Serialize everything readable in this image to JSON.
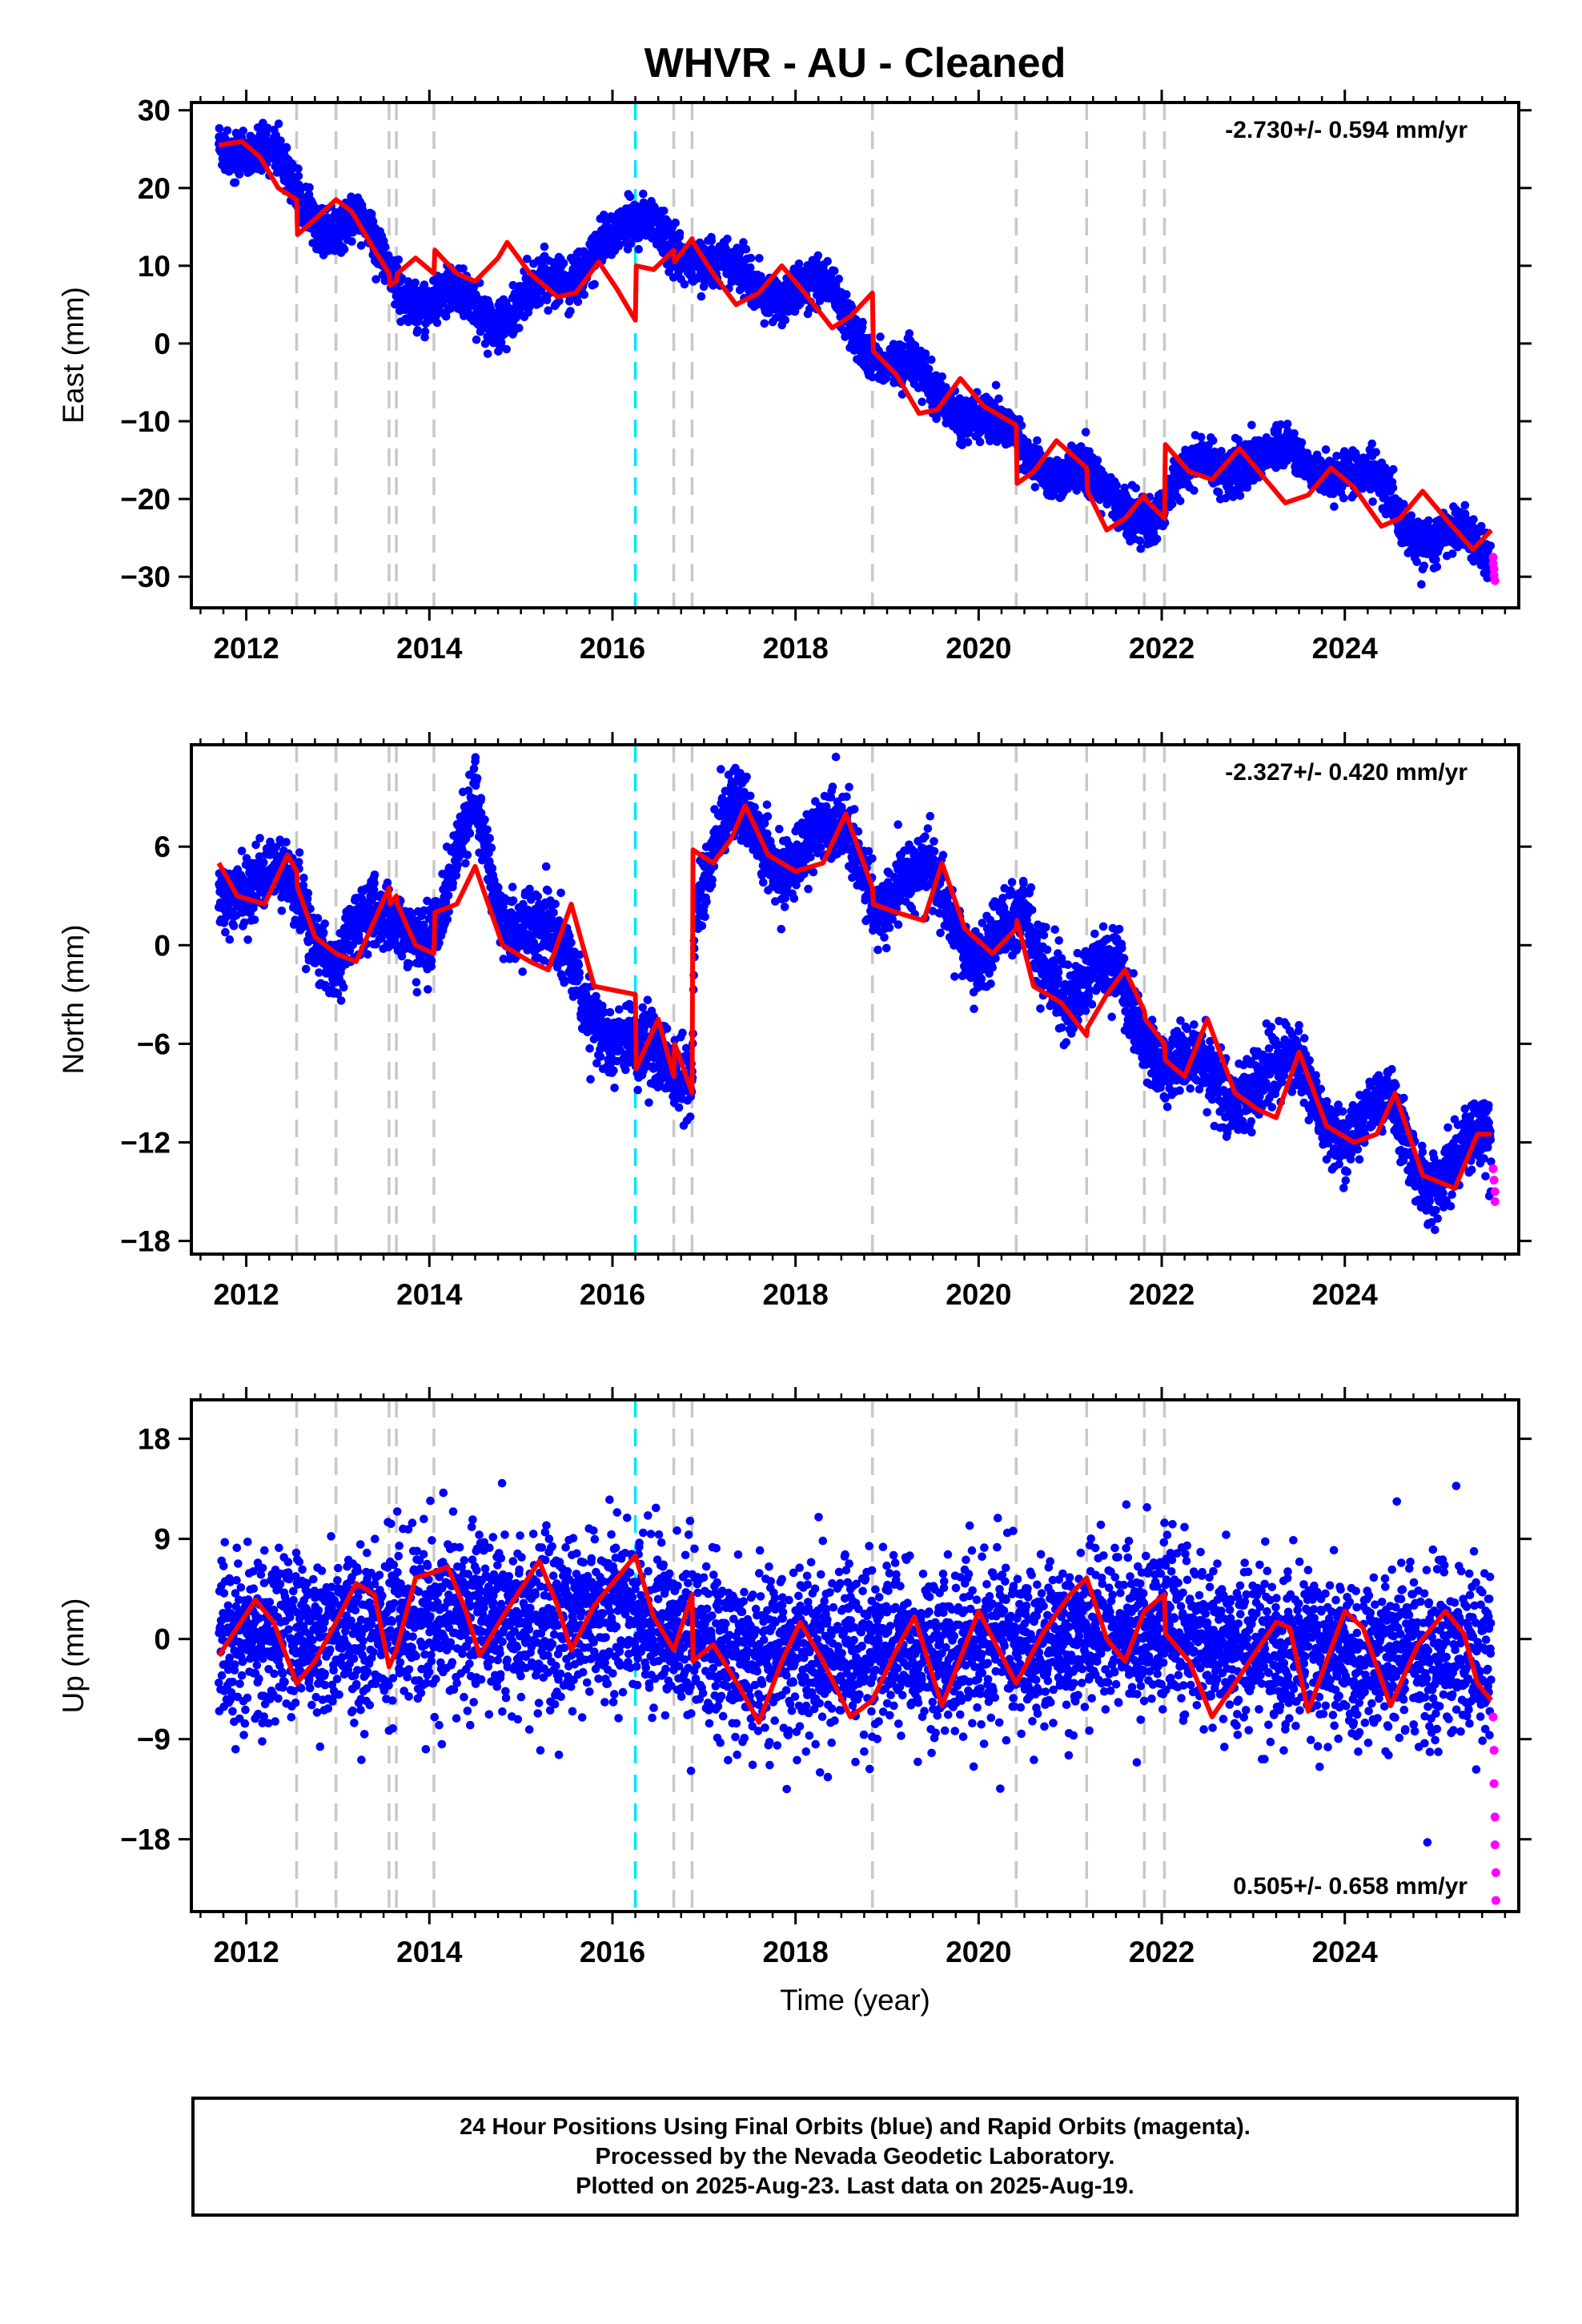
{
  "title": "WHVR  - AU - Cleaned",
  "xlabel": "Time (year)",
  "caption": [
    "24 Hour Positions Using Final Orbits (blue) and Rapid Orbits (magenta).",
    "Processed by the Nevada Geodetic Laboratory.",
    "Plotted on 2025-Aug-23. Last data on 2025-Aug-19."
  ],
  "colors": {
    "final_points": "#0000ff",
    "rapid_points": "#ff00ff",
    "model": "#ff0000",
    "break_lines": "#c8c8c8",
    "highlight_break": "#00e5ff"
  },
  "chart_data": [
    {
      "type": "scatter",
      "ylabel": "East (mm)",
      "xlim": [
        2011.4,
        2025.9
      ],
      "ylim": [
        -34,
        31
      ],
      "yticks": [
        30,
        20,
        10,
        0,
        -10,
        -20,
        -30
      ],
      "xticks": [
        2012,
        2014,
        2016,
        2018,
        2020,
        2022,
        2024
      ],
      "xtick_labels": [
        "2012",
        "2014",
        "2016",
        "2018",
        "2020",
        "2022",
        "2024"
      ],
      "rate_label": "-2.730+/- 0.594 mm/yr",
      "rate_position": "top-right",
      "grid": false,
      "break_lines": [
        2012.55,
        2012.98,
        2013.56,
        2013.64,
        2014.05,
        2016.67,
        2016.87,
        2018.84,
        2020.41,
        2021.18,
        2021.81,
        2022.03
      ],
      "highlight_break": 2016.25,
      "model": [
        [
          2011.7,
          25.5
        ],
        [
          2011.95,
          26.0
        ],
        [
          2012.15,
          24.0
        ],
        [
          2012.35,
          20.0
        ],
        [
          2012.55,
          18.5
        ],
        [
          2012.56,
          14.0
        ],
        [
          2012.75,
          16.0
        ],
        [
          2012.98,
          18.5
        ],
        [
          2013.15,
          17.0
        ],
        [
          2013.35,
          13.0
        ],
        [
          2013.56,
          9.0
        ],
        [
          2013.57,
          7.5
        ],
        [
          2013.64,
          8.0
        ],
        [
          2013.65,
          9.0
        ],
        [
          2013.85,
          11.0
        ],
        [
          2014.05,
          9.0
        ],
        [
          2014.06,
          12.0
        ],
        [
          2014.3,
          9.0
        ],
        [
          2014.5,
          8.0
        ],
        [
          2014.75,
          11.0
        ],
        [
          2014.85,
          13.0
        ],
        [
          2015.1,
          9.0
        ],
        [
          2015.4,
          6.0
        ],
        [
          2015.6,
          6.5
        ],
        [
          2015.85,
          10.5
        ],
        [
          2016.05,
          7.0
        ],
        [
          2016.25,
          3.0
        ],
        [
          2016.26,
          10.0
        ],
        [
          2016.45,
          9.5
        ],
        [
          2016.67,
          12.0
        ],
        [
          2016.68,
          10.5
        ],
        [
          2016.87,
          13.5
        ],
        [
          2016.88,
          13.0
        ],
        [
          2017.1,
          9.0
        ],
        [
          2017.35,
          5.0
        ],
        [
          2017.6,
          6.5
        ],
        [
          2017.85,
          10.0
        ],
        [
          2018.1,
          6.5
        ],
        [
          2018.4,
          2.0
        ],
        [
          2018.6,
          3.5
        ],
        [
          2018.84,
          6.5
        ],
        [
          2018.85,
          -1.0
        ],
        [
          2019.1,
          -4.0
        ],
        [
          2019.35,
          -9.0
        ],
        [
          2019.55,
          -8.5
        ],
        [
          2019.8,
          -4.5
        ],
        [
          2020.05,
          -8.0
        ],
        [
          2020.41,
          -10.5
        ],
        [
          2020.42,
          -18.0
        ],
        [
          2020.6,
          -16.5
        ],
        [
          2020.85,
          -12.5
        ],
        [
          2021.18,
          -16.0
        ],
        [
          2021.19,
          -19.0
        ],
        [
          2021.4,
          -24.0
        ],
        [
          2021.6,
          -22.5
        ],
        [
          2021.81,
          -19.5
        ],
        [
          2021.82,
          -20.0
        ],
        [
          2022.03,
          -22.5
        ],
        [
          2022.04,
          -13.0
        ],
        [
          2022.3,
          -16.5
        ],
        [
          2022.55,
          -17.5
        ],
        [
          2022.85,
          -13.5
        ],
        [
          2023.1,
          -17.0
        ],
        [
          2023.35,
          -20.5
        ],
        [
          2023.6,
          -19.5
        ],
        [
          2023.85,
          -16.0
        ],
        [
          2024.1,
          -18.5
        ],
        [
          2024.4,
          -23.5
        ],
        [
          2024.6,
          -22.5
        ],
        [
          2024.85,
          -19.0
        ],
        [
          2025.1,
          -22.5
        ],
        [
          2025.4,
          -26.5
        ],
        [
          2025.6,
          -24.0
        ]
      ],
      "drift": [
        [
          2011.7,
          27.5
        ],
        [
          2012.3,
          23.0
        ],
        [
          2012.6,
          18.0
        ],
        [
          2013.2,
          15.0
        ],
        [
          2013.6,
          8.0
        ],
        [
          2014.1,
          6.0
        ],
        [
          2014.6,
          3.0
        ],
        [
          2015.0,
          7.0
        ],
        [
          2015.5,
          6.0
        ],
        [
          2015.9,
          16.0
        ],
        [
          2016.25,
          14.0
        ],
        [
          2016.9,
          12.5
        ],
        [
          2017.5,
          6.5
        ],
        [
          2018.0,
          8.5
        ],
        [
          2018.8,
          1.0
        ],
        [
          2019.5,
          -7.0
        ],
        [
          2020.0,
          -8.0
        ],
        [
          2020.5,
          -15.5
        ],
        [
          2021.0,
          -15.0
        ],
        [
          2021.5,
          -22.0
        ],
        [
          2022.0,
          -20.0
        ],
        [
          2022.5,
          -16.0
        ],
        [
          2023.0,
          -14.0
        ],
        [
          2023.5,
          -16.0
        ],
        [
          2024.0,
          -15.0
        ],
        [
          2024.6,
          -22.5
        ],
        [
          2025.1,
          -24.0
        ],
        [
          2025.65,
          -29.5
        ]
      ],
      "season_amp": 2.2,
      "noise": 1.4,
      "rapid": [
        [
          2025.62,
          -27.5
        ],
        [
          2025.62,
          -28.3
        ],
        [
          2025.63,
          -29.0
        ],
        [
          2025.63,
          -29.8
        ],
        [
          2025.64,
          -30.5
        ]
      ]
    },
    {
      "type": "scatter",
      "ylabel": "North (mm)",
      "xlim": [
        2011.4,
        2025.9
      ],
      "ylim": [
        -18.8,
        12.2
      ],
      "yticks": [
        6,
        0,
        -6,
        -12,
        -18
      ],
      "xticks": [
        2012,
        2014,
        2016,
        2018,
        2020,
        2022,
        2024
      ],
      "xtick_labels": [
        "2012",
        "2014",
        "2016",
        "2018",
        "2020",
        "2022",
        "2024"
      ],
      "rate_label": "-2.327+/- 0.420 mm/yr",
      "rate_position": "top-right",
      "grid": false,
      "break_lines": [
        2012.55,
        2012.98,
        2013.56,
        2013.64,
        2014.05,
        2016.67,
        2016.87,
        2018.84,
        2020.41,
        2021.18,
        2021.81,
        2022.03
      ],
      "highlight_break": 2016.25,
      "model": [
        [
          2011.7,
          5.0
        ],
        [
          2011.9,
          3.0
        ],
        [
          2012.2,
          2.5
        ],
        [
          2012.45,
          5.5
        ],
        [
          2012.55,
          4.5
        ],
        [
          2012.56,
          3.5
        ],
        [
          2012.75,
          0.5
        ],
        [
          2012.98,
          -0.5
        ],
        [
          2013.2,
          -1.0
        ],
        [
          2013.4,
          1.5
        ],
        [
          2013.56,
          3.5
        ],
        [
          2013.57,
          2.5
        ],
        [
          2013.64,
          3.0
        ],
        [
          2013.65,
          2.5
        ],
        [
          2013.85,
          0.0
        ],
        [
          2014.05,
          -0.5
        ],
        [
          2014.06,
          2.0
        ],
        [
          2014.3,
          2.5
        ],
        [
          2014.5,
          4.8
        ],
        [
          2014.8,
          0.0
        ],
        [
          2015.1,
          -1.0
        ],
        [
          2015.3,
          -1.5
        ],
        [
          2015.55,
          2.5
        ],
        [
          2015.8,
          -2.5
        ],
        [
          2016.25,
          -3.0
        ],
        [
          2016.26,
          -7.5
        ],
        [
          2016.5,
          -4.5
        ],
        [
          2016.67,
          -8.0
        ],
        [
          2016.68,
          -6.0
        ],
        [
          2016.87,
          -9.0
        ],
        [
          2016.88,
          5.8
        ],
        [
          2017.1,
          5.0
        ],
        [
          2017.3,
          6.5
        ],
        [
          2017.45,
          8.5
        ],
        [
          2017.7,
          5.5
        ],
        [
          2018.0,
          4.5
        ],
        [
          2018.3,
          5.0
        ],
        [
          2018.55,
          8.0
        ],
        [
          2018.84,
          3.5
        ],
        [
          2018.85,
          2.5
        ],
        [
          2019.1,
          2.0
        ],
        [
          2019.4,
          1.5
        ],
        [
          2019.6,
          5.0
        ],
        [
          2019.85,
          1.0
        ],
        [
          2020.15,
          -0.5
        ],
        [
          2020.41,
          1.0
        ],
        [
          2020.42,
          1.5
        ],
        [
          2020.6,
          -2.5
        ],
        [
          2020.9,
          -3.5
        ],
        [
          2021.18,
          -5.5
        ],
        [
          2021.19,
          -5.0
        ],
        [
          2021.4,
          -3.0
        ],
        [
          2021.6,
          -1.5
        ],
        [
          2021.81,
          -4.0
        ],
        [
          2021.82,
          -4.5
        ],
        [
          2022.03,
          -6.0
        ],
        [
          2022.04,
          -7.0
        ],
        [
          2022.25,
          -8.0
        ],
        [
          2022.5,
          -4.5
        ],
        [
          2022.8,
          -9.0
        ],
        [
          2023.05,
          -10.0
        ],
        [
          2023.25,
          -10.5
        ],
        [
          2023.5,
          -6.5
        ],
        [
          2023.8,
          -11.0
        ],
        [
          2024.1,
          -12.0
        ],
        [
          2024.35,
          -11.5
        ],
        [
          2024.55,
          -9.0
        ],
        [
          2024.85,
          -14.0
        ],
        [
          2025.2,
          -14.8
        ],
        [
          2025.45,
          -11.5
        ],
        [
          2025.6,
          -11.5
        ]
      ],
      "drift": [
        [
          2011.7,
          4.0
        ],
        [
          2012.5,
          3.5
        ],
        [
          2012.9,
          -0.5
        ],
        [
          2013.4,
          1.0
        ],
        [
          2013.7,
          1.5
        ],
        [
          2014.1,
          1.0
        ],
        [
          2014.5,
          8.5
        ],
        [
          2014.8,
          2.0
        ],
        [
          2015.3,
          0.5
        ],
        [
          2015.7,
          -3.0
        ],
        [
          2016.25,
          -7.0
        ],
        [
          2016.87,
          -7.5
        ],
        [
          2016.9,
          3.0
        ],
        [
          2017.3,
          8.0
        ],
        [
          2017.8,
          5.5
        ],
        [
          2018.6,
          6.5
        ],
        [
          2018.9,
          3.0
        ],
        [
          2019.5,
          4.0
        ],
        [
          2020.0,
          -0.5
        ],
        [
          2020.5,
          1.0
        ],
        [
          2021.0,
          -3.0
        ],
        [
          2021.5,
          -1.5
        ],
        [
          2022.0,
          -7.0
        ],
        [
          2022.8,
          -8.5
        ],
        [
          2023.5,
          -7.5
        ],
        [
          2024.0,
          -11.5
        ],
        [
          2024.5,
          -10.0
        ],
        [
          2025.0,
          -14.5
        ],
        [
          2025.6,
          -11.5
        ]
      ],
      "season_amp": 1.0,
      "noise": 1.0,
      "rapid": [
        [
          2025.62,
          -13.6
        ],
        [
          2025.63,
          -14.3
        ],
        [
          2025.64,
          -15.0
        ],
        [
          2025.64,
          -15.6
        ]
      ]
    },
    {
      "type": "scatter",
      "ylabel": "Up (mm)",
      "xlim": [
        2011.4,
        2025.9
      ],
      "ylim": [
        -24.5,
        21.5
      ],
      "yticks": [
        18,
        9,
        0,
        -9,
        -18
      ],
      "xticks": [
        2012,
        2014,
        2016,
        2018,
        2020,
        2022,
        2024
      ],
      "xtick_labels": [
        "2012",
        "2014",
        "2016",
        "2018",
        "2020",
        "2022",
        "2024"
      ],
      "rate_label": "0.505+/- 0.658 mm/yr",
      "rate_position": "bottom-right",
      "grid": false,
      "break_lines": [
        2012.55,
        2012.98,
        2013.56,
        2013.64,
        2014.05,
        2016.67,
        2016.87,
        2018.84,
        2020.41,
        2021.18,
        2021.81,
        2022.03
      ],
      "highlight_break": 2016.25,
      "model": [
        [
          2011.7,
          -1.5
        ],
        [
          2012.1,
          3.5
        ],
        [
          2012.3,
          1.5
        ],
        [
          2012.55,
          -4.0
        ],
        [
          2012.75,
          -2.0
        ],
        [
          2012.98,
          1.5
        ],
        [
          2013.2,
          5.0
        ],
        [
          2013.4,
          4.0
        ],
        [
          2013.56,
          -2.5
        ],
        [
          2013.64,
          -1.0
        ],
        [
          2013.85,
          5.5
        ],
        [
          2014.05,
          6.0
        ],
        [
          2014.2,
          6.5
        ],
        [
          2014.4,
          2.5
        ],
        [
          2014.55,
          -1.5
        ],
        [
          2014.8,
          2.0
        ],
        [
          2015.2,
          7.0
        ],
        [
          2015.4,
          3.0
        ],
        [
          2015.55,
          -1.0
        ],
        [
          2015.8,
          3.0
        ],
        [
          2016.25,
          7.5
        ],
        [
          2016.45,
          2.0
        ],
        [
          2016.67,
          -1.0
        ],
        [
          2016.87,
          4.0
        ],
        [
          2016.88,
          -2.0
        ],
        [
          2017.1,
          -0.5
        ],
        [
          2017.4,
          -4.5
        ],
        [
          2017.6,
          -7.5
        ],
        [
          2017.85,
          -2.0
        ],
        [
          2018.05,
          1.5
        ],
        [
          2018.3,
          -2.0
        ],
        [
          2018.6,
          -7.0
        ],
        [
          2018.84,
          -5.5
        ],
        [
          2019.1,
          -1.0
        ],
        [
          2019.3,
          2.0
        ],
        [
          2019.6,
          -6.0
        ],
        [
          2020.0,
          2.5
        ],
        [
          2020.41,
          -4.0
        ],
        [
          2020.7,
          0.5
        ],
        [
          2021.0,
          4.0
        ],
        [
          2021.18,
          5.5
        ],
        [
          2021.4,
          0.0
        ],
        [
          2021.6,
          -2.0
        ],
        [
          2021.81,
          2.5
        ],
        [
          2022.03,
          4.0
        ],
        [
          2022.04,
          0.5
        ],
        [
          2022.3,
          -2.0
        ],
        [
          2022.55,
          -7.0
        ],
        [
          2022.8,
          -4.0
        ],
        [
          2023.0,
          -1.5
        ],
        [
          2023.25,
          1.5
        ],
        [
          2023.4,
          1.0
        ],
        [
          2023.6,
          -6.5
        ],
        [
          2024.0,
          2.5
        ],
        [
          2024.2,
          1.0
        ],
        [
          2024.5,
          -6.0
        ],
        [
          2024.8,
          -0.5
        ],
        [
          2025.1,
          2.5
        ],
        [
          2025.3,
          0.5
        ],
        [
          2025.45,
          -4.0
        ],
        [
          2025.6,
          -5.5
        ]
      ],
      "drift": [
        [
          2011.7,
          0.0
        ],
        [
          2014.0,
          1.5
        ],
        [
          2016.2,
          2.0
        ],
        [
          2017.5,
          -1.5
        ],
        [
          2020.0,
          -0.5
        ],
        [
          2022.0,
          0.5
        ],
        [
          2023.5,
          -1.5
        ],
        [
          2025.6,
          -1.5
        ]
      ],
      "season_amp": 0.0,
      "noise": 3.6,
      "rapid": [
        [
          2025.62,
          -7.0
        ],
        [
          2025.63,
          -10.0
        ],
        [
          2025.63,
          -13.0
        ],
        [
          2025.64,
          -16.0
        ],
        [
          2025.64,
          -18.5
        ],
        [
          2025.65,
          -21.0
        ],
        [
          2025.65,
          -23.5
        ]
      ]
    }
  ]
}
